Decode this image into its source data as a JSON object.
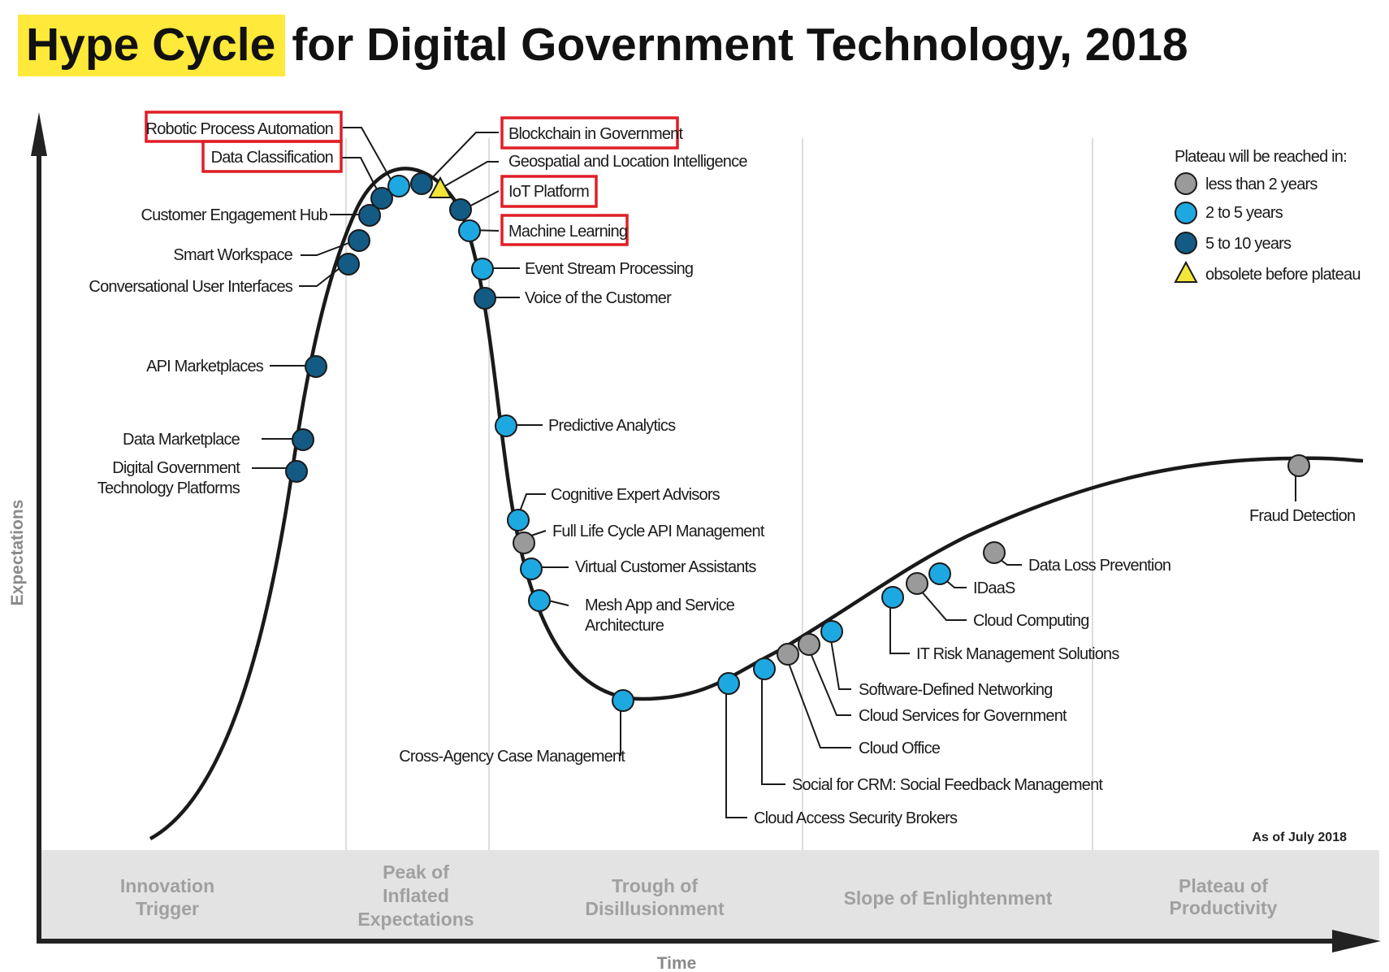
{
  "title": {
    "highlight": "Hype Cycle",
    "rest": "for Digital Government Technology, 2018"
  },
  "colors": {
    "highlight": "#ffe93a",
    "lt2": "#9a9a9a",
    "2to5": "#1ea8e2",
    "5to10": "#135b84",
    "obsolete": "#f2e63a",
    "redbox": "#e01e26"
  },
  "legend": {
    "title": "Plateau will be reached in:",
    "items": [
      {
        "label": "less than 2 years",
        "symbol": "circle-gray"
      },
      {
        "label": "2 to 5 years",
        "symbol": "circle-lightblue"
      },
      {
        "label": "5 to 10 years",
        "symbol": "circle-darkblue"
      },
      {
        "label": "obsolete before plateau",
        "symbol": "triangle-yellow"
      }
    ]
  },
  "phases": {
    "innovation": [
      "Innovation",
      "Trigger"
    ],
    "peak": [
      "Peak of",
      "Inflated",
      "Expectations"
    ],
    "trough": [
      "Trough of",
      "Disillusionment"
    ],
    "slope": [
      "Slope of Enlightenment"
    ],
    "plateau": [
      "Plateau of",
      "Productivity"
    ]
  },
  "axes": {
    "x": "Time",
    "y": "Expectations"
  },
  "as_of": "As of July 2018",
  "technologies": {
    "rpa": {
      "label": "Robotic Process Automation",
      "horizon": "2to5"
    },
    "data_classification": {
      "label": "Data Classification",
      "horizon": "5to10"
    },
    "customer_engagement_hub": {
      "label": "Customer Engagement Hub",
      "horizon": "5to10"
    },
    "smart_workspace": {
      "label": "Smart Workspace",
      "horizon": "5to10"
    },
    "conversational_ui": {
      "label": "Conversational User Interfaces",
      "horizon": "5to10"
    },
    "api_marketplaces": {
      "label": "API Marketplaces",
      "horizon": "5to10"
    },
    "data_marketplace": {
      "label": "Data Marketplace",
      "horizon": "5to10"
    },
    "digital_gov_platforms": {
      "label": [
        "Digital Government",
        "Technology Platforms"
      ],
      "horizon": "5to10"
    },
    "blockchain": {
      "label": "Blockchain in Government",
      "horizon": "5to10"
    },
    "geospatial": {
      "label": "Geospatial and Location Intelligence",
      "horizon": "obsolete"
    },
    "iot_platform": {
      "label": "IoT Platform",
      "horizon": "5to10"
    },
    "machine_learning": {
      "label": "Machine Learning",
      "horizon": "2to5"
    },
    "event_stream": {
      "label": "Event Stream Processing",
      "horizon": "2to5"
    },
    "voice_of_customer": {
      "label": "Voice of the Customer",
      "horizon": "5to10"
    },
    "predictive_analytics": {
      "label": "Predictive Analytics",
      "horizon": "2to5"
    },
    "cognitive_expert": {
      "label": "Cognitive Expert Advisors",
      "horizon": "2to5"
    },
    "full_lifecycle_api": {
      "label": "Full Life Cycle API Management",
      "horizon": "lt2"
    },
    "virtual_customer_assistants": {
      "label": "Virtual Customer Assistants",
      "horizon": "2to5"
    },
    "mesh_app": {
      "label": [
        "Mesh App and Service",
        "Architecture"
      ],
      "horizon": "2to5"
    },
    "cross_agency": {
      "label": "Cross-Agency Case Management",
      "horizon": "2to5"
    },
    "casb": {
      "label": "Cloud Access Security Brokers",
      "horizon": "2to5"
    },
    "social_crm": {
      "label": "Social for CRM: Social Feedback Management",
      "horizon": "2to5"
    },
    "cloud_office": {
      "label": "Cloud Office",
      "horizon": "lt2"
    },
    "cloud_services_gov": {
      "label": "Cloud Services for Government",
      "horizon": "lt2"
    },
    "sdn": {
      "label": "Software-Defined Networking",
      "horizon": "2to5"
    },
    "it_risk": {
      "label": "IT Risk Management Solutions",
      "horizon": "2to5"
    },
    "cloud_computing": {
      "label": "Cloud Computing",
      "horizon": "lt2"
    },
    "idaas": {
      "label": "IDaaS",
      "horizon": "2to5"
    },
    "dlp": {
      "label": "Data Loss Prevention",
      "horizon": "lt2"
    },
    "fraud_detection": {
      "label": "Fraud Detection",
      "horizon": "lt2"
    }
  },
  "highlighted": [
    "Robotic Process Automation",
    "Data Classification",
    "Blockchain in Government",
    "IoT Platform",
    "Machine Learning"
  ]
}
